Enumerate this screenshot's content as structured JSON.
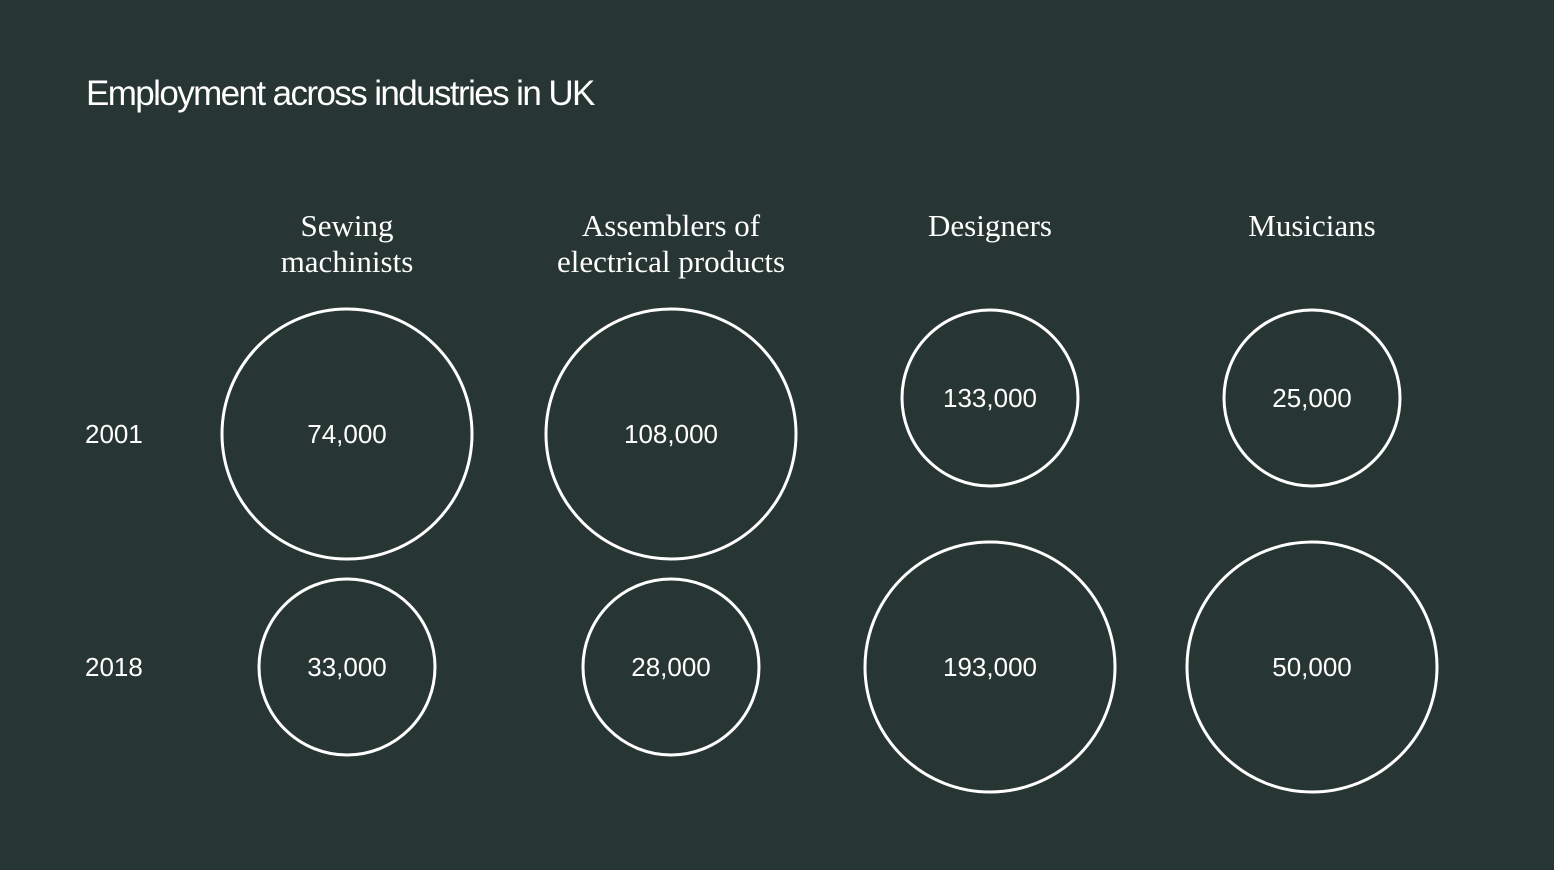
{
  "title": "Employment across industries in UK",
  "colors": {
    "background": "#283633",
    "text": "#ffffff",
    "circle_stroke": "#ffffff"
  },
  "chart_data": {
    "type": "bubble-grid",
    "title": "Employment across industries in UK",
    "categories": [
      [
        "Sewing",
        "machinists"
      ],
      [
        "Assemblers of",
        "electrical products"
      ],
      [
        "Designers"
      ],
      [
        "Musicians"
      ]
    ],
    "series": [
      {
        "name": "2001",
        "values": [
          74000,
          108000,
          133000,
          25000
        ],
        "labels": [
          "74,000",
          "108,000",
          "133,000",
          "25,000"
        ]
      },
      {
        "name": "2018",
        "values": [
          33000,
          28000,
          193000,
          50000
        ],
        "labels": [
          "33,000",
          "28,000",
          "193,000",
          "50,000"
        ]
      }
    ],
    "encoding": "within each industry, the larger of the two years is drawn as the large circle and the smaller as the small circle",
    "grid": false,
    "legend": "none"
  }
}
